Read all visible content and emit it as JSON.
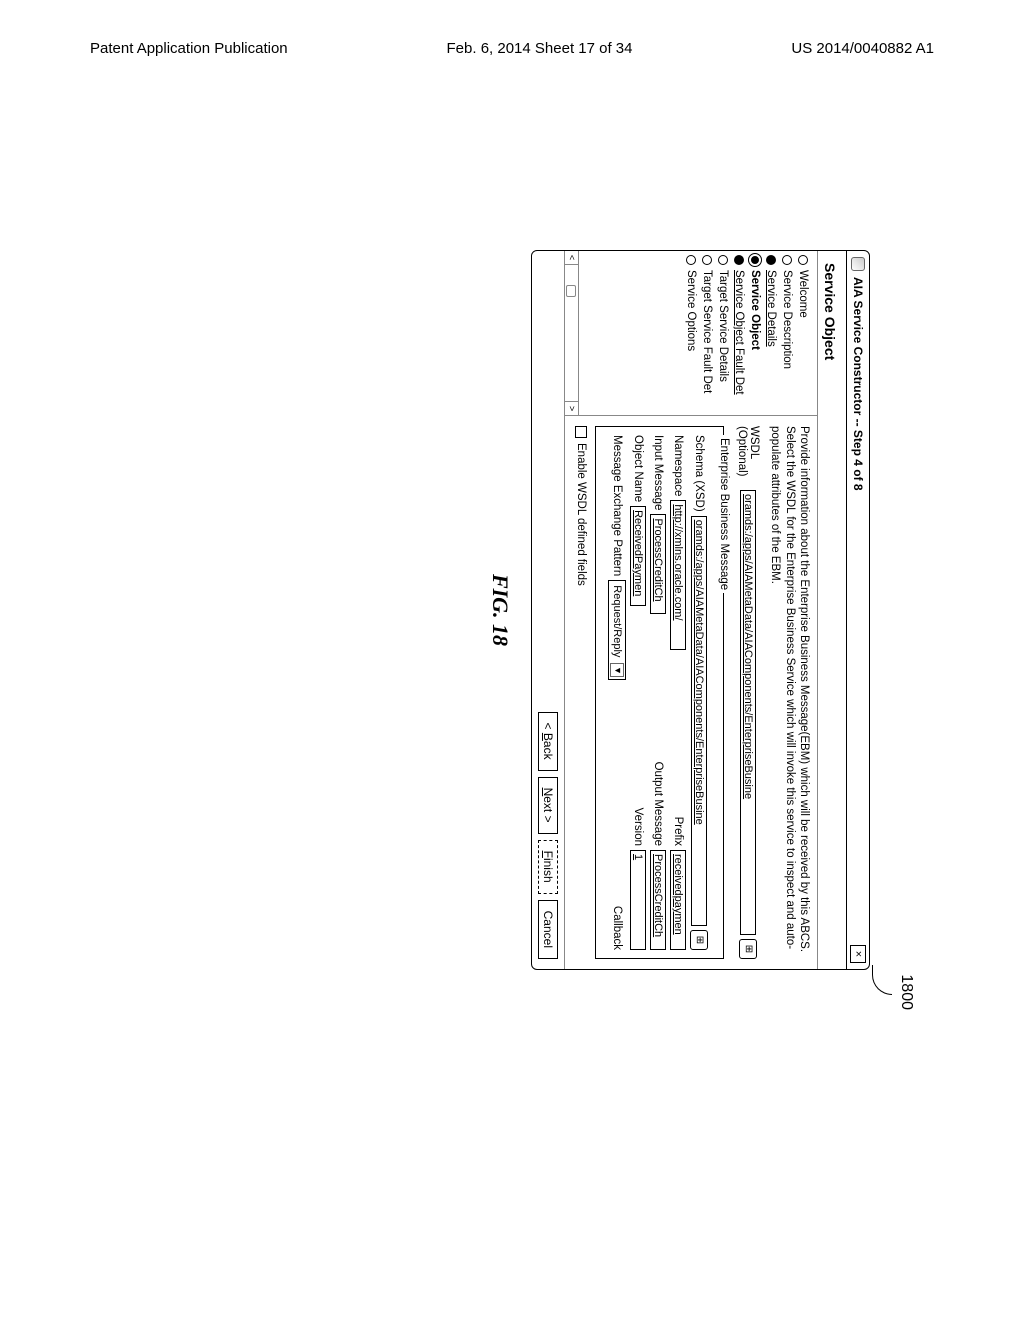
{
  "page_header": {
    "left": "Patent Application Publication",
    "center": "Feb. 6, 2014  Sheet 17 of 34",
    "right": "US 2014/0040882 A1"
  },
  "ref_number": "1800",
  "window": {
    "title": "AIA Service Constructor -- Step 4 of 8",
    "subtitle": "Service Object"
  },
  "sidebar": {
    "steps": [
      {
        "label": "Welcome",
        "dot": "open"
      },
      {
        "label": "Service Description",
        "dot": "open"
      },
      {
        "label": "Service Details",
        "dot": "filled",
        "link": true
      },
      {
        "label": "Service Object",
        "dot": "current",
        "bold": true
      },
      {
        "label": "Service Object Fault Det",
        "dot": "filled",
        "link": true
      },
      {
        "label": "Target Service Details",
        "dot": "open"
      },
      {
        "label": "Target Service Fault Det",
        "dot": "open"
      },
      {
        "label": "Service Options",
        "dot": "open"
      }
    ]
  },
  "content": {
    "description": "Provide information about the Enterprise Business Message(EBM) which will be received by this ABCS. Select the WSDL for the Enterprise Business Service which will invoke this service to inspect and auto-populate attributes of the EBM.",
    "wsdl_label": "WSDL\n(Optional)",
    "wsdl_value": "oramds:/apps/AIAMetaData/AIAComponents/EnterpriseBusine",
    "ebm_legend": "Enterprise Business Message",
    "schema_label": "Schema (XSD)",
    "schema_value": "oramds:/apps/AIAMetaData/AIAComponents/EnterpriseBusine",
    "namespace_label": "Namespace",
    "namespace_value": "http://xmlns.oracle.com/",
    "prefix_label": "Prefix",
    "prefix_value": "receivedpaymen",
    "input_msg_label": "Input Message",
    "input_msg_value": "ProcessCreditCh",
    "output_msg_label": "Output Message",
    "output_msg_value": "ProcessCreditCh",
    "object_name_label": "Object Name",
    "object_name_value": "ReceivedPaymen",
    "version_label": "Version",
    "version_value": "1",
    "mep_label": "Message Exchange Pattern",
    "mep_value": "Request/Reply",
    "callback_label": "Callback",
    "checkbox_label": "Enable WSDL defined fields"
  },
  "buttons": {
    "back": "< Back",
    "next": "Next >",
    "finish": "Finish",
    "cancel": "Cancel"
  },
  "figure_caption": "FIG. 18"
}
